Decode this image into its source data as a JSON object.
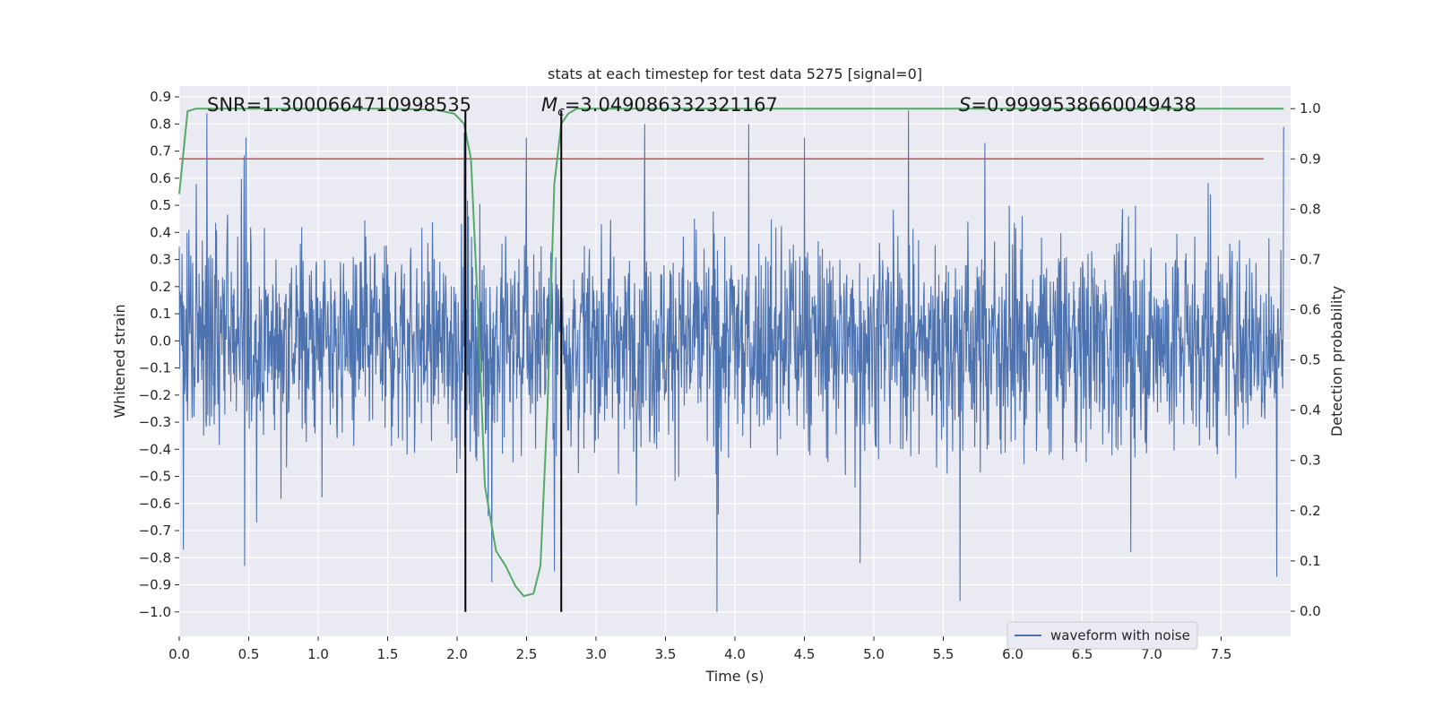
{
  "chart_data": {
    "type": "line",
    "title": "stats at each timestep for test data 5275 [signal=0]",
    "xlabel": "Time (s)",
    "ylabel_left": "Whitened strain",
    "ylabel_right": "Detection probability",
    "xlim": [
      0.0,
      8.0
    ],
    "ylim_left": [
      -1.09,
      0.94
    ],
    "ylim_right": [
      -0.05,
      1.045
    ],
    "x_ticks": [
      0.0,
      0.5,
      1.0,
      1.5,
      2.0,
      2.5,
      3.0,
      3.5,
      4.0,
      4.5,
      5.0,
      5.5,
      6.0,
      6.5,
      7.0,
      7.5
    ],
    "x_tick_labels": [
      "0.0",
      "0.5",
      "1.0",
      "1.5",
      "2.0",
      "2.5",
      "3.0",
      "3.5",
      "4.0",
      "4.5",
      "5.0",
      "5.5",
      "6.0",
      "6.5",
      "7.0",
      "7.5"
    ],
    "y_left_ticks": [
      0.9,
      0.8,
      0.7,
      0.6,
      0.5,
      0.4,
      0.3,
      0.2,
      0.1,
      0.0,
      -0.1,
      -0.2,
      -0.3,
      -0.4,
      -0.5,
      -0.6,
      -0.7,
      -0.8,
      -0.9,
      -1.0
    ],
    "y_left_tick_labels": [
      "0.9",
      "0.8",
      "0.7",
      "0.6",
      "0.5",
      "0.4",
      "0.3",
      "0.2",
      "0.1",
      "0.0",
      "−0.1",
      "−0.2",
      "−0.3",
      "−0.4",
      "−0.5",
      "−0.6",
      "−0.7",
      "−0.8",
      "−0.9",
      "−1.0"
    ],
    "y_right_ticks": [
      1.0,
      0.9,
      0.8,
      0.7,
      0.6,
      0.5,
      0.4,
      0.3,
      0.2,
      0.1,
      0.0
    ],
    "y_right_tick_labels": [
      "1.0",
      "0.9",
      "0.8",
      "0.7",
      "0.6",
      "0.5",
      "0.4",
      "0.3",
      "0.2",
      "0.1",
      "0.0"
    ],
    "grid": true,
    "legend": {
      "entries": [
        "waveform with noise"
      ],
      "location": "lower-right"
    },
    "annotations": {
      "snr_text": "SNR=1.3000664710998535",
      "mc_symbol": "M",
      "mc_subscript": "c",
      "mc_value": "=3.049086332321167",
      "s_symbol": "S",
      "s_value": "=0.9999538660049438"
    },
    "series": [
      {
        "name": "waveform with noise",
        "axis": "left",
        "color": "#4c72b0",
        "style": "dense noise",
        "envelope": {
          "band_low": -0.45,
          "band_high": 0.45,
          "typical_peak": 0.55
        },
        "peaks": [
          {
            "x": 0.2,
            "y": 0.84
          },
          {
            "x": 0.48,
            "y": 0.75
          },
          {
            "x": 2.05,
            "y": 0.77
          },
          {
            "x": 2.5,
            "y": 0.75
          },
          {
            "x": 3.35,
            "y": 0.8
          },
          {
            "x": 4.1,
            "y": 0.8
          },
          {
            "x": 4.5,
            "y": 0.75
          },
          {
            "x": 5.25,
            "y": 0.85
          },
          {
            "x": 5.8,
            "y": 0.73
          },
          {
            "x": 7.95,
            "y": 0.79
          }
        ],
        "troughs": [
          {
            "x": 0.03,
            "y": -0.77
          },
          {
            "x": 0.47,
            "y": -0.83
          },
          {
            "x": 2.25,
            "y": -0.89
          },
          {
            "x": 2.7,
            "y": -0.85
          },
          {
            "x": 3.87,
            "y": -1.0
          },
          {
            "x": 4.9,
            "y": -0.82
          },
          {
            "x": 5.62,
            "y": -0.96
          },
          {
            "x": 6.85,
            "y": -0.78
          },
          {
            "x": 7.9,
            "y": -0.87
          }
        ]
      },
      {
        "name": "detection probability",
        "axis": "right",
        "color": "#55a868",
        "x": [
          0.0,
          0.06,
          0.12,
          0.2,
          0.5,
          1.0,
          1.5,
          1.85,
          1.98,
          2.05,
          2.1,
          2.15,
          2.2,
          2.28,
          2.35,
          2.42,
          2.48,
          2.55,
          2.6,
          2.65,
          2.7,
          2.75,
          2.8,
          2.86,
          2.95,
          3.2,
          4.0,
          5.0,
          6.0,
          7.0,
          7.95
        ],
        "y": [
          0.83,
          0.995,
          1.0,
          1.0,
          1.0,
          1.0,
          1.0,
          0.998,
          0.99,
          0.97,
          0.9,
          0.6,
          0.25,
          0.12,
          0.09,
          0.05,
          0.03,
          0.035,
          0.09,
          0.4,
          0.85,
          0.97,
          0.99,
          1.0,
          1.0,
          1.0,
          1.0,
          1.0,
          1.0,
          1.0,
          1.0
        ]
      },
      {
        "name": "threshold",
        "axis": "right",
        "color": "#c44e52",
        "y_value": 0.9
      }
    ],
    "vertical_lines": [
      {
        "x": 2.06,
        "y_from": -1.0,
        "y_to": 0.85,
        "axis": "left",
        "color": "#000000"
      },
      {
        "x": 2.75,
        "y_from": -1.0,
        "y_to": 0.85,
        "axis": "left",
        "color": "#000000"
      }
    ]
  }
}
